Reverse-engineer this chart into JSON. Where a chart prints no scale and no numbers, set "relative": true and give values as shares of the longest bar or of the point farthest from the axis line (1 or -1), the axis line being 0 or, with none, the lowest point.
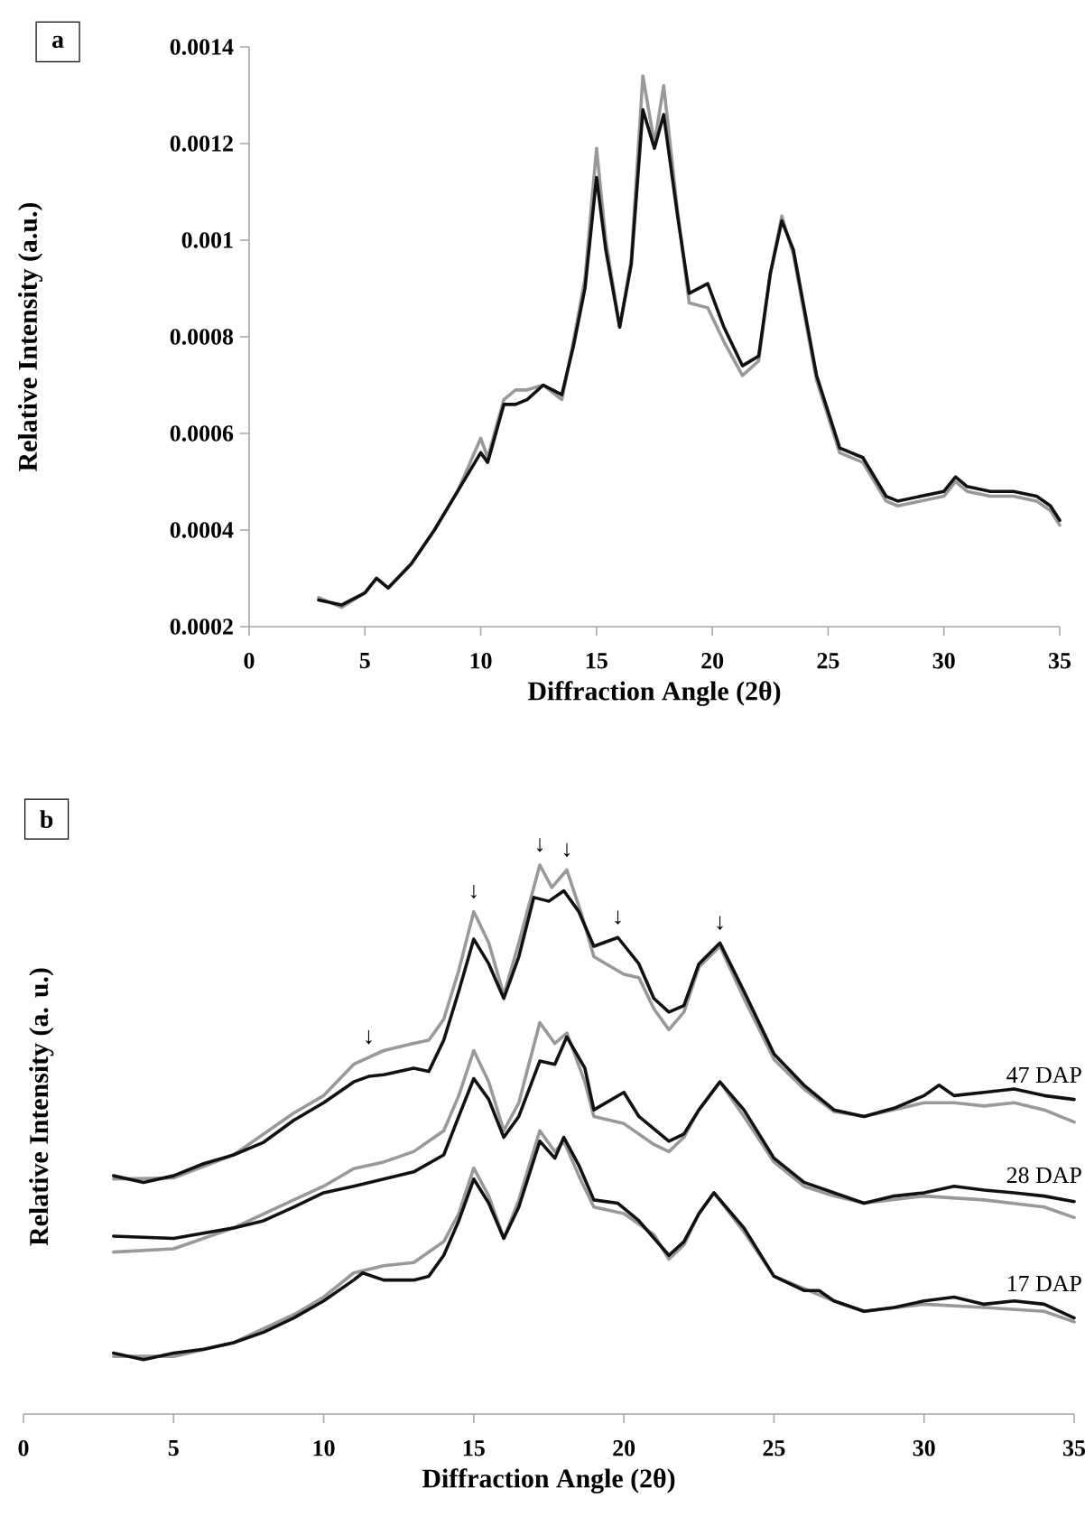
{
  "chart_data": [
    {
      "type": "line",
      "title": "a",
      "xlabel": "Diffraction Angle (2θ)",
      "ylabel": "Relative Intensity (a.u.)",
      "xlim": [
        0,
        35
      ],
      "xticks": [
        0,
        5,
        10,
        15,
        20,
        25,
        30,
        35
      ],
      "ylim": [
        0.0002,
        0.0014
      ],
      "yticks": [
        0.0002,
        0.0004,
        0.0006,
        0.0008,
        0.001,
        0.0012,
        0.0014
      ],
      "series": [
        {
          "color": "#999999",
          "x": [
            3,
            4,
            5,
            5.5,
            6,
            7,
            8,
            9,
            10,
            10.3,
            11,
            11.5,
            12,
            12.7,
            13.5,
            14,
            14.5,
            15,
            15.4,
            16,
            16.5,
            17,
            17.5,
            17.9,
            18.5,
            19,
            19.8,
            20.5,
            21.3,
            22,
            22.5,
            23,
            23.5,
            24.5,
            25.5,
            26.5,
            27.5,
            28,
            29,
            30,
            30.5,
            31,
            32,
            33,
            34,
            34.6,
            35
          ],
          "values": [
            0.00026,
            0.00024,
            0.00027,
            0.0003,
            0.00028,
            0.00033,
            0.0004,
            0.00048,
            0.00059,
            0.00055,
            0.00067,
            0.00069,
            0.00069,
            0.0007,
            0.00067,
            0.00079,
            0.00092,
            0.00119,
            0.001,
            0.00082,
            0.00096,
            0.00134,
            0.0012,
            0.00132,
            0.00106,
            0.00087,
            0.00086,
            0.00079,
            0.00072,
            0.00075,
            0.00093,
            0.00105,
            0.00097,
            0.00071,
            0.00056,
            0.00054,
            0.00046,
            0.00045,
            0.00046,
            0.00047,
            0.0005,
            0.00048,
            0.00047,
            0.00047,
            0.00046,
            0.00044,
            0.00041
          ]
        },
        {
          "color": "#111111",
          "x": [
            3,
            4,
            5,
            5.5,
            6,
            7,
            8,
            9,
            10,
            10.3,
            11,
            11.5,
            12,
            12.7,
            13.5,
            14,
            14.5,
            15,
            15.4,
            16,
            16.5,
            17,
            17.5,
            17.9,
            18.5,
            19,
            19.8,
            20.5,
            21.3,
            22,
            22.5,
            23,
            23.5,
            24.5,
            25.5,
            26.5,
            27.5,
            28,
            29,
            30,
            30.5,
            31,
            32,
            33,
            34,
            34.6,
            35
          ],
          "values": [
            0.000255,
            0.000245,
            0.00027,
            0.0003,
            0.00028,
            0.00033,
            0.0004,
            0.00048,
            0.00056,
            0.00054,
            0.00066,
            0.00066,
            0.00067,
            0.0007,
            0.00068,
            0.00078,
            0.0009,
            0.00113,
            0.00098,
            0.00082,
            0.00095,
            0.00127,
            0.00119,
            0.00126,
            0.00105,
            0.00089,
            0.00091,
            0.00082,
            0.00074,
            0.00076,
            0.00093,
            0.00104,
            0.00098,
            0.00072,
            0.00057,
            0.00055,
            0.00047,
            0.00046,
            0.00047,
            0.00048,
            0.00051,
            0.00049,
            0.00048,
            0.00048,
            0.00047,
            0.00045,
            0.00042
          ]
        }
      ]
    },
    {
      "type": "line",
      "title": "b",
      "xlabel": "Diffraction Angle (2θ)",
      "ylabel": "Relative Intensity (a. u.)",
      "xlim": [
        0,
        35
      ],
      "xticks": [
        0,
        5,
        10,
        15,
        20,
        25,
        30,
        35
      ],
      "relative": true,
      "series": [
        {
          "color": "#999999",
          "x": [
            3,
            5,
            7,
            9,
            10,
            11,
            12,
            13,
            13.5,
            14,
            14.5,
            15,
            15.5,
            16,
            16.5,
            17.2,
            17.6,
            18.1,
            18.6,
            19,
            20,
            20.5,
            21,
            21.5,
            22,
            22.5,
            23.2,
            24,
            25,
            26,
            27,
            28,
            30,
            31,
            32,
            33,
            34,
            35
          ],
          "values": [
            0.428,
            0.43,
            0.472,
            0.548,
            0.58,
            0.637,
            0.662,
            0.675,
            0.681,
            0.719,
            0.808,
            0.915,
            0.858,
            0.763,
            0.858,
            1.0,
            0.959,
            0.991,
            0.909,
            0.833,
            0.801,
            0.795,
            0.738,
            0.7,
            0.732,
            0.814,
            0.852,
            0.757,
            0.646,
            0.592,
            0.551,
            0.542,
            0.567,
            0.567,
            0.561,
            0.567,
            0.554,
            0.532
          ]
        },
        {
          "color": "#111111",
          "x": [
            3,
            4,
            5,
            6,
            7,
            8,
            9,
            10,
            11,
            11.5,
            12,
            13,
            13.5,
            14,
            14.5,
            15,
            15.5,
            16,
            16.5,
            17,
            17.5,
            18,
            18.5,
            19,
            19.8,
            20.5,
            21,
            21.5,
            22,
            22.5,
            23.2,
            24,
            25,
            26,
            27,
            28,
            29,
            30,
            30.5,
            31,
            32,
            33,
            34,
            35
          ],
          "values": [
            0.434,
            0.422,
            0.434,
            0.456,
            0.472,
            0.495,
            0.535,
            0.567,
            0.605,
            0.615,
            0.618,
            0.63,
            0.624,
            0.681,
            0.77,
            0.865,
            0.82,
            0.757,
            0.833,
            0.941,
            0.934,
            0.953,
            0.915,
            0.852,
            0.868,
            0.82,
            0.757,
            0.732,
            0.744,
            0.82,
            0.858,
            0.77,
            0.656,
            0.599,
            0.554,
            0.542,
            0.557,
            0.58,
            0.599,
            0.58,
            0.586,
            0.592,
            0.58,
            0.573
          ]
        },
        {
          "color": "#999999",
          "x": [
            3,
            5,
            7,
            9,
            10,
            11,
            12,
            13,
            14,
            14.5,
            15,
            15.5,
            16,
            16.5,
            17.2,
            17.7,
            18.1,
            18.7,
            19,
            20,
            21,
            21.5,
            22,
            22.5,
            23.2,
            24,
            25,
            26,
            27,
            28,
            30,
            32,
            34,
            35
          ],
          "values": [
            0.295,
            0.301,
            0.339,
            0.39,
            0.415,
            0.447,
            0.459,
            0.478,
            0.516,
            0.58,
            0.662,
            0.605,
            0.516,
            0.567,
            0.713,
            0.675,
            0.694,
            0.605,
            0.542,
            0.529,
            0.491,
            0.478,
            0.504,
            0.554,
            0.605,
            0.542,
            0.459,
            0.415,
            0.397,
            0.384,
            0.397,
            0.39,
            0.377,
            0.358
          ]
        },
        {
          "color": "#111111",
          "x": [
            3,
            5,
            7,
            8,
            9,
            10,
            11,
            12,
            13,
            14,
            14.5,
            15,
            15.5,
            16,
            16.5,
            17.2,
            17.7,
            18.1,
            18.7,
            19,
            20,
            20.5,
            21.5,
            22,
            22.5,
            23.2,
            24,
            25,
            26,
            27,
            28,
            29,
            30,
            31,
            32,
            33,
            34,
            35
          ],
          "values": [
            0.324,
            0.32,
            0.339,
            0.352,
            0.377,
            0.403,
            0.415,
            0.428,
            0.441,
            0.472,
            0.542,
            0.611,
            0.573,
            0.504,
            0.542,
            0.643,
            0.637,
            0.687,
            0.63,
            0.554,
            0.586,
            0.542,
            0.497,
            0.51,
            0.554,
            0.605,
            0.554,
            0.466,
            0.422,
            0.403,
            0.384,
            0.397,
            0.403,
            0.415,
            0.408,
            0.403,
            0.397,
            0.387
          ]
        },
        {
          "color": "#999999",
          "x": [
            3,
            5,
            7,
            9,
            10,
            11,
            12,
            13,
            14,
            14.5,
            15,
            15.5,
            16,
            16.5,
            17.2,
            17.7,
            18,
            18.5,
            19,
            20,
            21,
            21.5,
            22,
            22.5,
            23,
            24,
            25,
            27,
            28,
            30,
            32,
            34,
            35
          ],
          "values": [
            0.105,
            0.105,
            0.13,
            0.181,
            0.213,
            0.257,
            0.27,
            0.276,
            0.314,
            0.365,
            0.448,
            0.397,
            0.32,
            0.39,
            0.516,
            0.478,
            0.497,
            0.434,
            0.377,
            0.365,
            0.327,
            0.282,
            0.308,
            0.365,
            0.403,
            0.332,
            0.251,
            0.206,
            0.187,
            0.2,
            0.194,
            0.187,
            0.168
          ]
        },
        {
          "color": "#111111",
          "x": [
            3,
            4,
            5,
            6,
            7,
            8,
            9,
            10,
            11,
            11.3,
            12,
            13,
            13.5,
            14,
            14.5,
            15,
            15.5,
            16,
            16.5,
            17.2,
            17.7,
            18,
            18.5,
            19,
            19.8,
            20.5,
            21.5,
            22,
            22.5,
            23,
            24,
            25,
            26,
            26.5,
            27,
            28,
            29,
            30,
            31,
            32,
            33,
            34,
            35
          ],
          "values": [
            0.111,
            0.099,
            0.111,
            0.118,
            0.13,
            0.149,
            0.175,
            0.206,
            0.244,
            0.257,
            0.244,
            0.244,
            0.251,
            0.289,
            0.352,
            0.428,
            0.384,
            0.32,
            0.377,
            0.497,
            0.466,
            0.504,
            0.453,
            0.39,
            0.384,
            0.352,
            0.289,
            0.314,
            0.365,
            0.403,
            0.339,
            0.251,
            0.225,
            0.225,
            0.206,
            0.187,
            0.194,
            0.206,
            0.213,
            0.2,
            0.206,
            0.2,
            0.175
          ]
        }
      ],
      "annotations": [
        {
          "text": "47 DAP",
          "x": 34,
          "y": 0.58
        },
        {
          "text": "28 DAP",
          "x": 34,
          "y": 0.397
        },
        {
          "text": "17 DAP",
          "x": 34,
          "y": 0.2
        },
        {
          "text": "↓",
          "x": 11.5,
          "y": 0.65
        },
        {
          "text": "↓",
          "x": 15,
          "y": 0.915
        },
        {
          "text": "↓",
          "x": 17.2,
          "y": 1.0
        },
        {
          "text": "↓",
          "x": 18.1,
          "y": 0.991
        },
        {
          "text": "↓",
          "x": 19.8,
          "y": 0.868
        },
        {
          "text": "↓",
          "x": 23.2,
          "y": 0.858
        }
      ]
    }
  ]
}
